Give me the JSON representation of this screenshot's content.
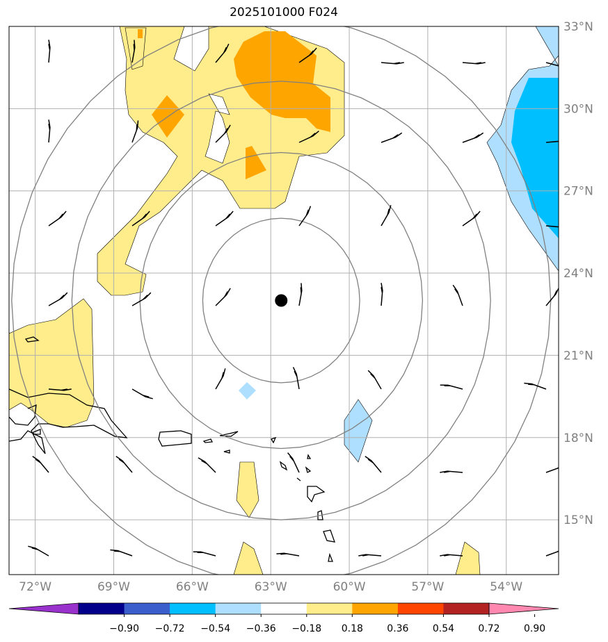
{
  "title": "2025101000 F024",
  "map": {
    "lon_range": [
      -73,
      -52
    ],
    "lat_range": [
      13,
      33
    ],
    "lon_ticks": [
      {
        "value": -72,
        "label": "72°W"
      },
      {
        "value": -69,
        "label": "69°W"
      },
      {
        "value": -66,
        "label": "66°W"
      },
      {
        "value": -63,
        "label": "63°W"
      },
      {
        "value": -60,
        "label": "60°W"
      },
      {
        "value": -57,
        "label": "57°W"
      },
      {
        "value": -54,
        "label": "54°W"
      }
    ],
    "lat_ticks": [
      {
        "value": 15,
        "label": "15°N"
      },
      {
        "value": 18,
        "label": "18°N"
      },
      {
        "value": 21,
        "label": "21°N"
      },
      {
        "value": 24,
        "label": "24°N"
      },
      {
        "value": 27,
        "label": "27°N"
      },
      {
        "value": 30,
        "label": "30°N"
      },
      {
        "value": 33,
        "label": "33°N"
      }
    ],
    "storm_center": {
      "lon": -62.6,
      "lat": 23.0
    },
    "range_rings_deg": [
      3,
      5.4,
      8,
      10.3
    ],
    "grid_color": "#b0b0b0",
    "ring_color": "#808080",
    "storm_marker": "filled-black-circle"
  },
  "colorbar": {
    "colors": [
      "#9932cc",
      "#00008b",
      "#3a5fcd",
      "#00bfff",
      "#afdfff",
      "#ffffff",
      "#ffec8b",
      "#ffa500",
      "#ff4500",
      "#b22222",
      "#ff88b0"
    ],
    "tick_labels": [
      "−0.90",
      "−0.72",
      "−0.54",
      "−0.36",
      "−0.18",
      "0.18",
      "0.36",
      "0.54",
      "0.72",
      "0.90"
    ]
  }
}
